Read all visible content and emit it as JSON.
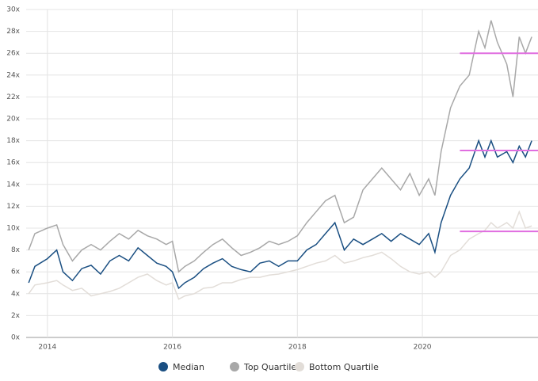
{
  "chart_data": {
    "type": "line",
    "x": [
      2013.7,
      2013.8,
      2014.0,
      2014.15,
      2014.25,
      2014.4,
      2014.55,
      2014.7,
      2014.85,
      2015.0,
      2015.15,
      2015.3,
      2015.45,
      2015.6,
      2015.75,
      2015.9,
      2016.0,
      2016.1,
      2016.2,
      2016.35,
      2016.5,
      2016.65,
      2016.8,
      2016.95,
      2017.1,
      2017.25,
      2017.4,
      2017.55,
      2017.7,
      2017.85,
      2018.0,
      2018.15,
      2018.3,
      2018.45,
      2018.6,
      2018.75,
      2018.9,
      2019.05,
      2019.2,
      2019.35,
      2019.5,
      2019.65,
      2019.8,
      2019.95,
      2020.1,
      2020.2,
      2020.3,
      2020.45,
      2020.6,
      2020.75,
      2020.9,
      2021.0,
      2021.1,
      2021.2,
      2021.35,
      2021.45,
      2021.55,
      2021.65,
      2021.75
    ],
    "series": [
      {
        "name": "Median",
        "color": "#1a4f82",
        "values": [
          5.0,
          6.5,
          7.2,
          8.0,
          6.0,
          5.2,
          6.3,
          6.6,
          5.8,
          7.0,
          7.5,
          7.0,
          8.2,
          7.5,
          6.8,
          6.5,
          6.0,
          4.5,
          5.0,
          5.5,
          6.3,
          6.8,
          7.2,
          6.5,
          6.2,
          6.0,
          6.8,
          7.0,
          6.5,
          7.0,
          7.0,
          8.0,
          8.5,
          9.5,
          10.5,
          8.0,
          9.0,
          8.5,
          9.0,
          9.5,
          8.8,
          9.5,
          9.0,
          8.5,
          9.5,
          7.8,
          10.5,
          13.0,
          14.5,
          15.5,
          18.0,
          16.5,
          18.0,
          16.5,
          17.0,
          16.0,
          17.5,
          16.5,
          18.0
        ]
      },
      {
        "name": "Top Quartile",
        "color": "#a8a8a8",
        "values": [
          8.0,
          9.5,
          10.0,
          10.3,
          8.5,
          7.0,
          8.0,
          8.5,
          8.0,
          8.8,
          9.5,
          9.0,
          9.8,
          9.3,
          9.0,
          8.5,
          8.8,
          6.0,
          6.5,
          7.0,
          7.8,
          8.5,
          9.0,
          8.2,
          7.5,
          7.8,
          8.2,
          8.8,
          8.5,
          8.8,
          9.3,
          10.5,
          11.5,
          12.5,
          13.0,
          10.5,
          11.0,
          13.5,
          14.5,
          15.5,
          14.5,
          13.5,
          15.0,
          13.0,
          14.5,
          13.0,
          17.0,
          21.0,
          23.0,
          24.0,
          28.0,
          26.5,
          29.0,
          27.0,
          25.0,
          22.0,
          27.5,
          26.0,
          27.5
        ]
      },
      {
        "name": "Bottom Quartile",
        "color": "#e2ddd8",
        "values": [
          4.0,
          4.8,
          5.0,
          5.2,
          4.8,
          4.3,
          4.5,
          3.8,
          4.0,
          4.2,
          4.5,
          5.0,
          5.5,
          5.8,
          5.2,
          4.8,
          5.0,
          3.5,
          3.8,
          4.0,
          4.5,
          4.6,
          5.0,
          5.0,
          5.3,
          5.5,
          5.5,
          5.7,
          5.8,
          6.0,
          6.2,
          6.5,
          6.8,
          7.0,
          7.5,
          6.8,
          7.0,
          7.3,
          7.5,
          7.8,
          7.2,
          6.5,
          6.0,
          5.8,
          6.0,
          5.5,
          6.0,
          7.5,
          8.0,
          9.0,
          9.5,
          9.8,
          10.5,
          10.0,
          10.5,
          10.0,
          11.5,
          10.0,
          10.2
        ]
      }
    ],
    "reference_lines": [
      {
        "value": 26,
        "start": 2020.6,
        "end": 2021.85,
        "color": "#e06ee0"
      },
      {
        "value": 17.1,
        "start": 2020.6,
        "end": 2021.85,
        "color": "#e06ee0"
      },
      {
        "value": 9.7,
        "start": 2020.6,
        "end": 2021.85,
        "color": "#e06ee0"
      }
    ],
    "xlim": [
      2013.66,
      2021.85
    ],
    "xticks": [
      2014,
      2016,
      2018,
      2020
    ],
    "ylim": [
      0,
      30
    ],
    "yticks": [
      {
        "value": 0,
        "label": "0x"
      },
      {
        "value": 2,
        "label": "2x"
      },
      {
        "value": 4,
        "label": "4x"
      },
      {
        "value": 6,
        "label": "6x"
      },
      {
        "value": 8,
        "label": "8x"
      },
      {
        "value": 10,
        "label": "10x"
      },
      {
        "value": 12,
        "label": "12x"
      },
      {
        "value": 14,
        "label": "14x"
      },
      {
        "value": 16,
        "label": "16x"
      },
      {
        "value": 18,
        "label": "18x"
      },
      {
        "value": 20,
        "label": "20x"
      },
      {
        "value": 22,
        "label": "22x"
      },
      {
        "value": 24,
        "label": "24x"
      },
      {
        "value": 26,
        "label": "26x"
      },
      {
        "value": 28,
        "label": "28x"
      },
      {
        "value": 30,
        "label": "30x"
      }
    ],
    "grid": true
  }
}
